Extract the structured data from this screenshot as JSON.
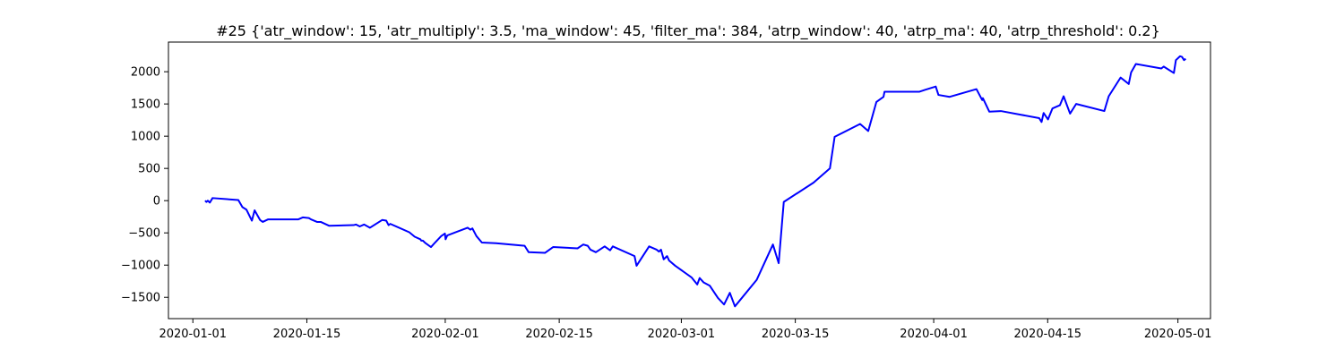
{
  "chart_data": {
    "type": "line",
    "title": "#25 {'atr_window': 15, 'atr_multiply': 3.5, 'ma_window': 45, 'filter_ma': 384, 'atrp_window': 40, 'atrp_ma': 40, 'atrp_threshold': 0.2}",
    "xlabel": "",
    "ylabel": "",
    "x_type": "date",
    "xlim": [
      "2019-12-29",
      "2020-05-05"
    ],
    "ylim": [
      -1830,
      2460
    ],
    "grid": false,
    "x_ticks": [
      {
        "value": "2020-01-01",
        "label": "2020-01-01"
      },
      {
        "value": "2020-01-15",
        "label": "2020-01-15"
      },
      {
        "value": "2020-02-01",
        "label": "2020-02-01"
      },
      {
        "value": "2020-02-15",
        "label": "2020-02-15"
      },
      {
        "value": "2020-03-01",
        "label": "2020-03-01"
      },
      {
        "value": "2020-03-15",
        "label": "2020-03-15"
      },
      {
        "value": "2020-04-01",
        "label": "2020-04-01"
      },
      {
        "value": "2020-04-15",
        "label": "2020-04-15"
      },
      {
        "value": "2020-05-01",
        "label": "2020-05-01"
      }
    ],
    "y_ticks": [
      {
        "value": 2000,
        "label": "2000"
      },
      {
        "value": 1500,
        "label": "1500"
      },
      {
        "value": 1000,
        "label": "1000"
      },
      {
        "value": 500,
        "label": "500"
      },
      {
        "value": 0,
        "label": "0"
      },
      {
        "value": -500,
        "label": "−500"
      },
      {
        "value": -1000,
        "label": "−1000"
      },
      {
        "value": -1500,
        "label": "−1500"
      }
    ],
    "series": [
      {
        "color": "#0000ff",
        "points": [
          [
            "2020-01-02 12:00",
            0
          ],
          [
            "2020-01-02 16:00",
            -20
          ],
          [
            "2020-01-02 20:00",
            0
          ],
          [
            "2020-01-03 02:00",
            -30
          ],
          [
            "2020-01-03 10:00",
            40
          ],
          [
            "2020-01-06 14:00",
            10
          ],
          [
            "2020-01-07 02:00",
            -100
          ],
          [
            "2020-01-07 14:00",
            -140
          ],
          [
            "2020-01-08 06:00",
            -310
          ],
          [
            "2020-01-08 14:00",
            -150
          ],
          [
            "2020-01-09 06:00",
            -300
          ],
          [
            "2020-01-09 14:00",
            -330
          ],
          [
            "2020-01-10 06:00",
            -290
          ],
          [
            "2020-01-13 23:00",
            -290
          ],
          [
            "2020-01-14 12:00",
            -260
          ],
          [
            "2020-01-15 06:00",
            -270
          ],
          [
            "2020-01-15 12:00",
            -290
          ],
          [
            "2020-01-16 06:00",
            -330
          ],
          [
            "2020-01-16 17:00",
            -330
          ],
          [
            "2020-01-17 18:00",
            -390
          ],
          [
            "2020-01-20 18:00",
            -380
          ],
          [
            "2020-01-21 01:00",
            -370
          ],
          [
            "2020-01-21 12:00",
            -400
          ],
          [
            "2020-01-22 01:00",
            -370
          ],
          [
            "2020-01-22 18:00",
            -420
          ],
          [
            "2020-01-24 06:00",
            -300
          ],
          [
            "2020-01-24 18:00",
            -310
          ],
          [
            "2020-01-25 01:00",
            -380
          ],
          [
            "2020-01-25 06:00",
            -360
          ],
          [
            "2020-01-27 14:00",
            -490
          ],
          [
            "2020-01-28 06:00",
            -560
          ],
          [
            "2020-01-28 23:00",
            -600
          ],
          [
            "2020-01-29 01:00",
            -620
          ],
          [
            "2020-01-29 06:00",
            -620
          ],
          [
            "2020-01-29 14:00",
            -660
          ],
          [
            "2020-01-30 06:00",
            -720
          ],
          [
            "2020-01-30 18:00",
            -650
          ],
          [
            "2020-01-31 12:00",
            -550
          ],
          [
            "2020-01-31 23:00",
            -510
          ],
          [
            "2020-02-01 01:00",
            -600
          ],
          [
            "2020-02-01 06:00",
            -540
          ],
          [
            "2020-02-03 18:00",
            -420
          ],
          [
            "2020-02-04 02:00",
            -450
          ],
          [
            "2020-02-04 08:00",
            -430
          ],
          [
            "2020-02-04 20:00",
            -550
          ],
          [
            "2020-02-05 12:00",
            -650
          ],
          [
            "2020-02-07 06:00",
            -660
          ],
          [
            "2020-02-10 18:00",
            -700
          ],
          [
            "2020-02-11 06:00",
            -800
          ],
          [
            "2020-02-13 06:00",
            -810
          ],
          [
            "2020-02-14 06:00",
            -720
          ],
          [
            "2020-02-17 06:00",
            -740
          ],
          [
            "2020-02-17 23:00",
            -680
          ],
          [
            "2020-02-18 12:00",
            -700
          ],
          [
            "2020-02-18 20:00",
            -760
          ],
          [
            "2020-02-19 12:00",
            -800
          ],
          [
            "2020-02-20 14:00",
            -710
          ],
          [
            "2020-02-21 06:00",
            -770
          ],
          [
            "2020-02-21 14:00",
            -710
          ],
          [
            "2020-02-24 06:00",
            -860
          ],
          [
            "2020-02-24 12:00",
            -1010
          ],
          [
            "2020-02-26 01:00",
            -710
          ],
          [
            "2020-02-26 23:00",
            -760
          ],
          [
            "2020-02-27 06:00",
            -790
          ],
          [
            "2020-02-27 12:00",
            -760
          ],
          [
            "2020-02-27 20:00",
            -910
          ],
          [
            "2020-02-28 06:00",
            -860
          ],
          [
            "2020-02-28 12:00",
            -930
          ],
          [
            "2020-02-29 06:00",
            -1010
          ],
          [
            "2020-03-02 06:00",
            -1190
          ],
          [
            "2020-03-02 23:00",
            -1300
          ],
          [
            "2020-03-03 06:00",
            -1200
          ],
          [
            "2020-03-03 18:00",
            -1270
          ],
          [
            "2020-03-04 12:00",
            -1320
          ],
          [
            "2020-03-05 12:00",
            -1510
          ],
          [
            "2020-03-06 06:00",
            -1610
          ],
          [
            "2020-03-06 23:00",
            -1430
          ],
          [
            "2020-03-07 14:00",
            -1640
          ],
          [
            "2020-03-10 06:00",
            -1230
          ],
          [
            "2020-03-12 06:00",
            -680
          ],
          [
            "2020-03-12 23:00",
            -970
          ],
          [
            "2020-03-13 14:00",
            -20
          ],
          [
            "2020-03-17 06:00",
            280
          ],
          [
            "2020-03-19 06:00",
            500
          ],
          [
            "2020-03-19 20:00",
            990
          ],
          [
            "2020-03-22 23:00",
            1190
          ],
          [
            "2020-03-23 23:00",
            1080
          ],
          [
            "2020-03-24 23:00",
            1530
          ],
          [
            "2020-03-25 20:00",
            1610
          ],
          [
            "2020-03-25 23:00",
            1690
          ],
          [
            "2020-03-30 06:00",
            1690
          ],
          [
            "2020-03-30 23:00",
            1720
          ],
          [
            "2020-04-01 06:00",
            1770
          ],
          [
            "2020-04-01 14:00",
            1640
          ],
          [
            "2020-04-02 23:00",
            1610
          ],
          [
            "2020-04-06 06:00",
            1730
          ],
          [
            "2020-04-06 23:00",
            1560
          ],
          [
            "2020-04-07 01:00",
            1590
          ],
          [
            "2020-04-07 20:00",
            1380
          ],
          [
            "2020-04-09 06:00",
            1390
          ],
          [
            "2020-04-13 23:00",
            1280
          ],
          [
            "2020-04-14 06:00",
            1220
          ],
          [
            "2020-04-14 12:00",
            1360
          ],
          [
            "2020-04-15 01:00",
            1260
          ],
          [
            "2020-04-15 14:00",
            1430
          ],
          [
            "2020-04-16 12:00",
            1480
          ],
          [
            "2020-04-16 23:00",
            1620
          ],
          [
            "2020-04-17 18:00",
            1350
          ],
          [
            "2020-04-18 12:00",
            1500
          ],
          [
            "2020-04-21 23:00",
            1390
          ],
          [
            "2020-04-22 12:00",
            1620
          ],
          [
            "2020-04-23 23:00",
            1910
          ],
          [
            "2020-04-24 23:00",
            1810
          ],
          [
            "2020-04-25 06:00",
            1990
          ],
          [
            "2020-04-25 20:00",
            2120
          ],
          [
            "2020-04-28 23:00",
            2050
          ],
          [
            "2020-04-29 06:00",
            2080
          ],
          [
            "2020-04-30 12:00",
            1980
          ],
          [
            "2020-04-30 18:00",
            2180
          ],
          [
            "2020-05-01 06:00",
            2240
          ],
          [
            "2020-05-01 12:00",
            2230
          ],
          [
            "2020-05-01 18:00",
            2180
          ],
          [
            "2020-05-01 23:00",
            2200
          ]
        ]
      }
    ]
  }
}
